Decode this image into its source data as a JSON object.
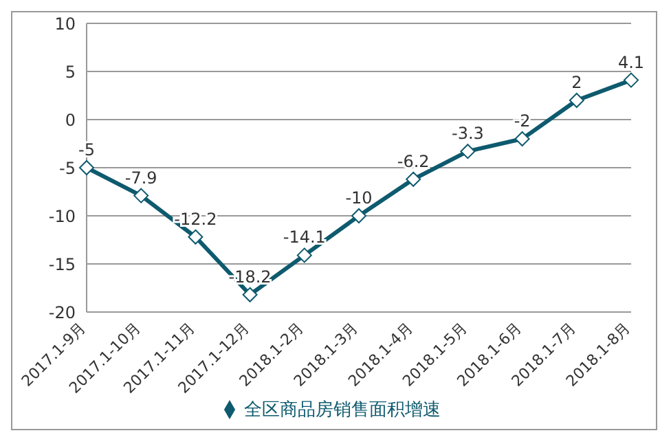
{
  "chart_data": {
    "type": "line",
    "categories": [
      "2017.1-9月",
      "2017.1-10月",
      "2017.1-11月",
      "2017.1-12月",
      "2018.1-2月",
      "2018.1-3月",
      "2018.1-4月",
      "2018.1-5月",
      "2018.1-6月",
      "2018.1-7月",
      "2018.1-8月"
    ],
    "series": [
      {
        "name": "全区商品房销售面积增速",
        "color": "#0e5a6e",
        "values": [
          -5,
          -7.9,
          -12.2,
          -18.2,
          -14.1,
          -10,
          -6.2,
          -3.3,
          -2,
          2,
          4.1
        ]
      }
    ],
    "ylim": [
      -20,
      10
    ],
    "yticks": [
      -20,
      -15,
      -10,
      -5,
      0,
      5,
      10
    ],
    "grid": "y",
    "legend": "bottom",
    "marker": "diamond",
    "line_style": "solid",
    "data_labels": true
  }
}
